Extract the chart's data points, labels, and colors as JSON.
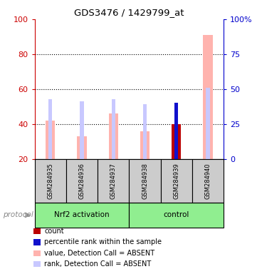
{
  "title": "GDS3476 / 1429799_at",
  "samples": [
    "GSM284935",
    "GSM284936",
    "GSM284937",
    "GSM284938",
    "GSM284939",
    "GSM284940"
  ],
  "value_bars": [
    42,
    33,
    46,
    36,
    40,
    91
  ],
  "rank_bars": [
    43,
    41,
    43,
    39,
    40,
    51
  ],
  "count_bar_idx": 4,
  "rank_bar_blue_idx": 4,
  "value_color": "#ffb3ae",
  "rank_color": "#c8c8ff",
  "blue_color": "#1010cc",
  "red_color": "#bb0000",
  "left_axis_color": "#cc0000",
  "right_axis_color": "#0000cc",
  "left_ylim": [
    20,
    100
  ],
  "right_ylim": [
    0,
    100
  ],
  "left_yticks": [
    20,
    40,
    60,
    80,
    100
  ],
  "right_yticks": [
    0,
    25,
    50,
    75,
    100
  ],
  "right_yticklabels": [
    "0",
    "25",
    "50",
    "75",
    "100%"
  ],
  "dotted_grid": [
    40,
    60,
    80
  ],
  "groups_info": [
    {
      "label": "Nrf2 activation",
      "start": 0,
      "end": 2
    },
    {
      "label": "control",
      "start": 3,
      "end": 5
    }
  ],
  "group_color": "#90ee90",
  "sample_box_color": "#cccccc",
  "protocol_label": "protocol",
  "legend": [
    {
      "color": "#bb0000",
      "label": "count"
    },
    {
      "color": "#1010cc",
      "label": "percentile rank within the sample"
    },
    {
      "color": "#ffb3ae",
      "label": "value, Detection Call = ABSENT"
    },
    {
      "color": "#c8c8ff",
      "label": "rank, Detection Call = ABSENT"
    }
  ]
}
